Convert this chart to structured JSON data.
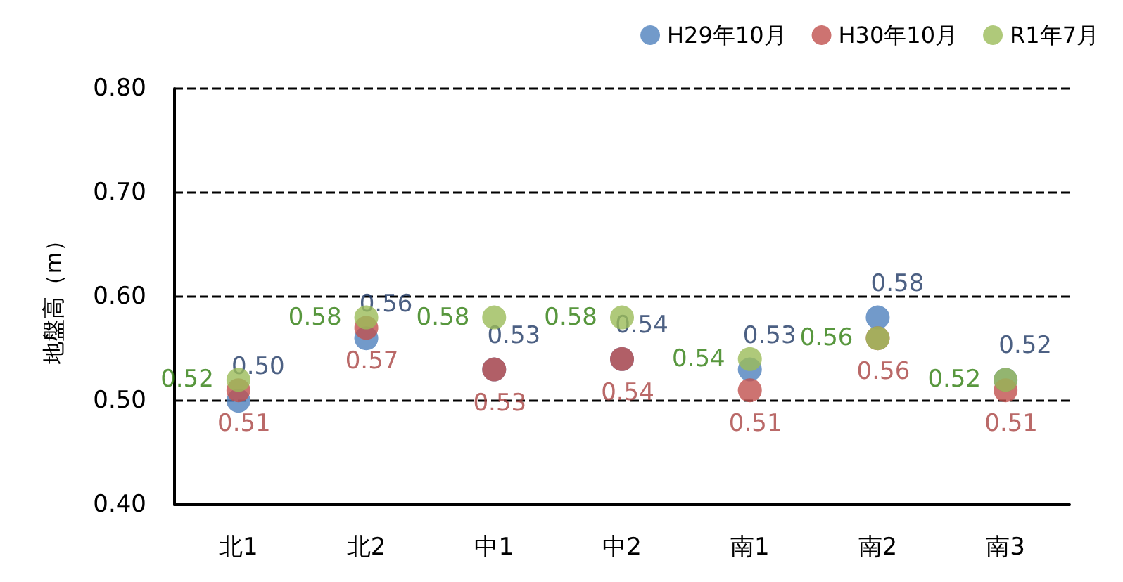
{
  "chart_data": {
    "type": "scatter",
    "ylabel": "地盤高（m）",
    "categories": [
      "北1",
      "北2",
      "中1",
      "中2",
      "南1",
      "南2",
      "南3"
    ],
    "series": [
      {
        "name": "H29年10月",
        "color": "#4f81bd",
        "values": [
          0.5,
          0.56,
          0.53,
          0.54,
          0.53,
          0.58,
          0.52
        ],
        "value_labels": [
          "0.50",
          "0.56",
          "0.53",
          "0.54",
          "0.53",
          "0.58",
          "0.52"
        ]
      },
      {
        "name": "H30年10月",
        "color": "#c0504d",
        "values": [
          0.51,
          0.57,
          0.53,
          0.54,
          0.51,
          0.56,
          0.51
        ],
        "value_labels": [
          "0.51",
          "0.57",
          "0.53",
          "0.54",
          "0.51",
          "0.56",
          "0.51"
        ]
      },
      {
        "name": "R1年7月",
        "color": "#9bbb59",
        "values": [
          0.52,
          0.58,
          0.58,
          0.58,
          0.54,
          0.56,
          0.52
        ],
        "value_labels": [
          "0.52",
          "0.58",
          "0.58",
          "0.58",
          "0.54",
          "0.56",
          "0.52"
        ]
      }
    ],
    "ylim": [
      0.4,
      0.8
    ],
    "yticks": [
      {
        "value": 0.4,
        "label": "0.40"
      },
      {
        "value": 0.5,
        "label": "0.50"
      },
      {
        "value": 0.6,
        "label": "0.60"
      },
      {
        "value": 0.7,
        "label": "0.70"
      },
      {
        "value": 0.8,
        "label": "0.80"
      }
    ],
    "grid": "y",
    "legend": "top right",
    "marker": "circle"
  }
}
